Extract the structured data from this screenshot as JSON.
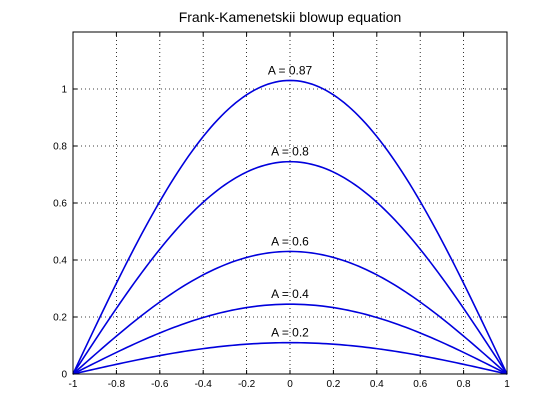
{
  "chart_data": {
    "type": "line",
    "title": "Frank-Kamenetskii blowup equation",
    "xlabel": "",
    "ylabel": "",
    "xlim": [
      -1,
      1
    ],
    "ylim": [
      0,
      1.2
    ],
    "x_ticks": [
      -1,
      -0.8,
      -0.6,
      -0.4,
      -0.2,
      0,
      0.2,
      0.4,
      0.6,
      0.8,
      1
    ],
    "x_tick_labels": [
      "-1",
      "-0.8",
      "-0.6",
      "-0.4",
      "-0.2",
      "0",
      "0.2",
      "0.4",
      "0.6",
      "0.8",
      "1"
    ],
    "y_ticks": [
      0,
      0.2,
      0.4,
      0.6,
      0.8,
      1
    ],
    "y_tick_labels": [
      "0",
      "0.2",
      "0.4",
      "0.6",
      "0.8",
      "1"
    ],
    "grid": true,
    "line_color": "#0000dd",
    "series": [
      {
        "label": "A = 0.2",
        "peak": 0.11
      },
      {
        "label": "A = 0.4",
        "peak": 0.245
      },
      {
        "label": "A = 0.6",
        "peak": 0.43
      },
      {
        "label": "A = 0.8",
        "peak": 0.745
      },
      {
        "label": "A = 0.87",
        "peak": 1.03
      }
    ]
  }
}
